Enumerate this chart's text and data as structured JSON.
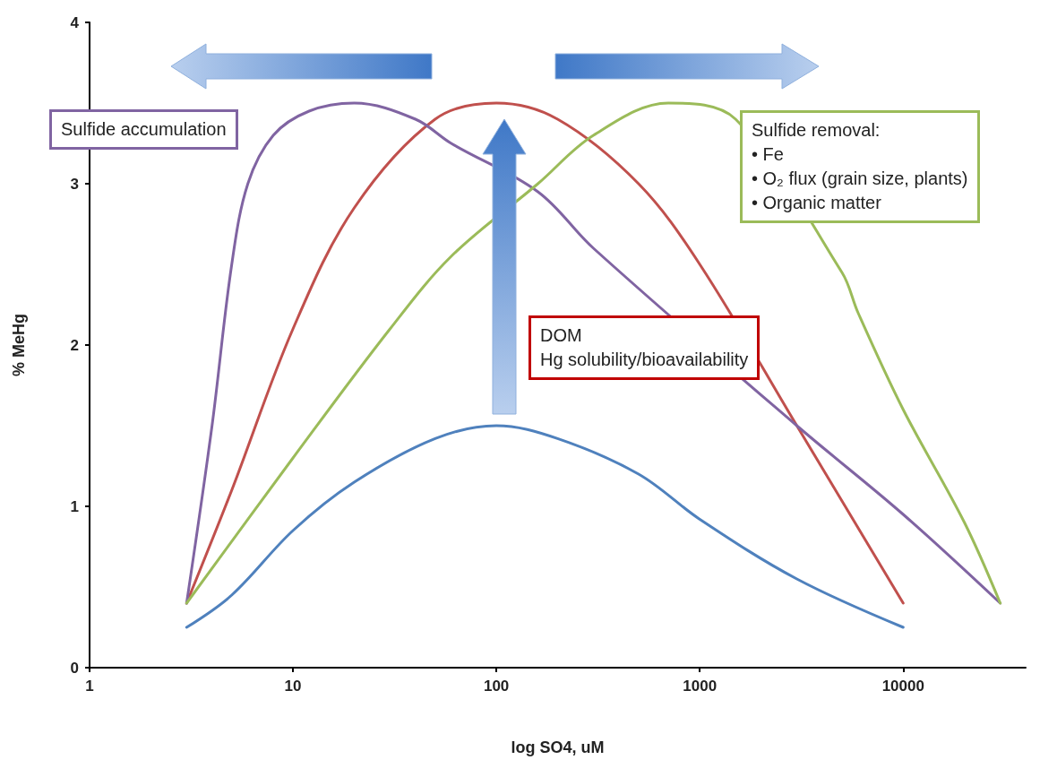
{
  "chart_data": {
    "type": "line",
    "xlabel": "log SO4, uM",
    "ylabel": "% MeHg",
    "log": "x",
    "xlim": [
      1,
      40000
    ],
    "xticks": [
      1,
      10,
      100,
      1000,
      10000
    ],
    "ylim": [
      0,
      4
    ],
    "yticks": [
      0,
      1,
      2,
      3,
      4
    ],
    "grid": false,
    "marker": "none",
    "line_style": "solid",
    "series": [
      {
        "color": "#4f81bd",
        "x": [
          3,
          5,
          10,
          20,
          50,
          100,
          200,
          500,
          1000,
          3000,
          10000
        ],
        "values": [
          0.25,
          0.45,
          0.85,
          1.15,
          1.42,
          1.5,
          1.42,
          1.2,
          0.92,
          0.55,
          0.25
        ]
      },
      {
        "color": "#c0504d",
        "x": [
          3,
          5,
          10,
          20,
          50,
          100,
          200,
          500,
          1000,
          3000,
          10000
        ],
        "values": [
          0.4,
          1.1,
          2.1,
          2.85,
          3.4,
          3.5,
          3.4,
          3.0,
          2.5,
          1.5,
          0.4
        ]
      },
      {
        "color": "#8064a2",
        "x": [
          3,
          4,
          5,
          6,
          8,
          12,
          20,
          40,
          60,
          160,
          300,
          3000,
          10000,
          30000
        ],
        "values": [
          0.4,
          1.5,
          2.5,
          3.0,
          3.3,
          3.45,
          3.5,
          3.4,
          3.25,
          2.95,
          2.6,
          1.5,
          0.95,
          0.4
        ]
      },
      {
        "color": "#9bbb59",
        "x": [
          3,
          10,
          30,
          60,
          160,
          300,
          700,
          1500,
          5000,
          6000,
          10000,
          20000,
          30000
        ],
        "values": [
          0.4,
          1.3,
          2.1,
          2.55,
          3.0,
          3.3,
          3.5,
          3.4,
          2.45,
          2.2,
          1.6,
          0.9,
          0.4
        ]
      }
    ],
    "annotations": [
      "Sulfide accumulation",
      "Sulfide removal:",
      "• Fe",
      "• O₂ flux (grain size, plants)",
      "• Organic matter",
      "DOM",
      "Hg solubility/bioavailability"
    ]
  }
}
